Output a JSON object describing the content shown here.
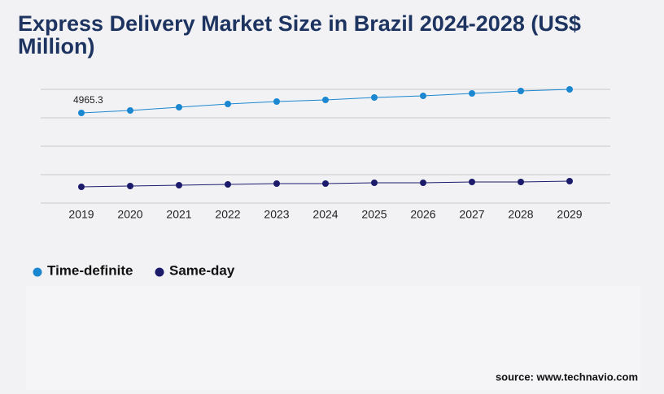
{
  "chart_data": {
    "type": "line",
    "title": [
      "Express Delivery Market Size in Brazil 2024-2028 (US$",
      "Million)"
    ],
    "categories": [
      "2019",
      "2020",
      "2021",
      "2022",
      "2023",
      "2024",
      "2025",
      "2026",
      "2027",
      "2028",
      "2029"
    ],
    "series": [
      {
        "name": "Time-definite",
        "color": "#1b87d1",
        "values": [
          4965.3,
          5099,
          5278,
          5457,
          5591,
          5681,
          5815,
          5904,
          6039,
          6173,
          6262
        ],
        "value_labels": [
          "4965.3",
          null,
          null,
          null,
          null,
          null,
          null,
          null,
          null,
          null,
          null
        ]
      },
      {
        "name": "Same-day",
        "color": "#1c1b6b",
        "values": [
          895,
          939,
          984,
          1029,
          1074,
          1074,
          1118,
          1118,
          1163,
          1163,
          1208
        ]
      }
    ],
    "ylim": [
      0,
      6262
    ],
    "grid": true,
    "source": "source: www.technavio.com"
  }
}
